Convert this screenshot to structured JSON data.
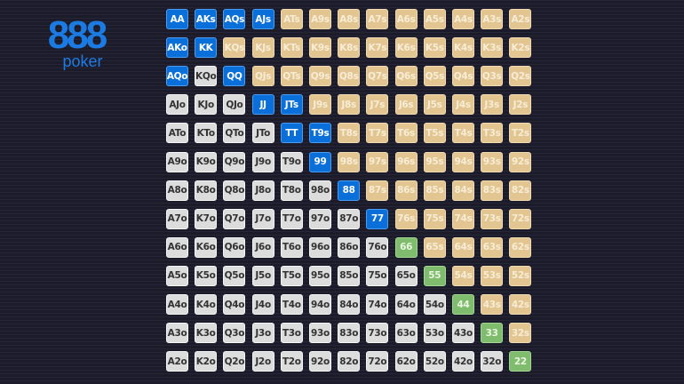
{
  "logo": {
    "number": "888",
    "word": "poker"
  },
  "colors": {
    "selected": "#0a6fd8",
    "pair": "#80bc6e",
    "suited": "#e2c590",
    "offsuit": "#dcdcdc",
    "brand": "#1b7be3"
  },
  "ranks": [
    "A",
    "K",
    "Q",
    "J",
    "T",
    "9",
    "8",
    "7",
    "6",
    "5",
    "4",
    "3",
    "2"
  ],
  "selected_hands": [
    "AA",
    "AKs",
    "AQs",
    "AJs",
    "AKo",
    "KK",
    "AQo",
    "QQ",
    "JJ",
    "JTs",
    "TT",
    "T9s",
    "99",
    "88",
    "77"
  ],
  "grid": []
}
